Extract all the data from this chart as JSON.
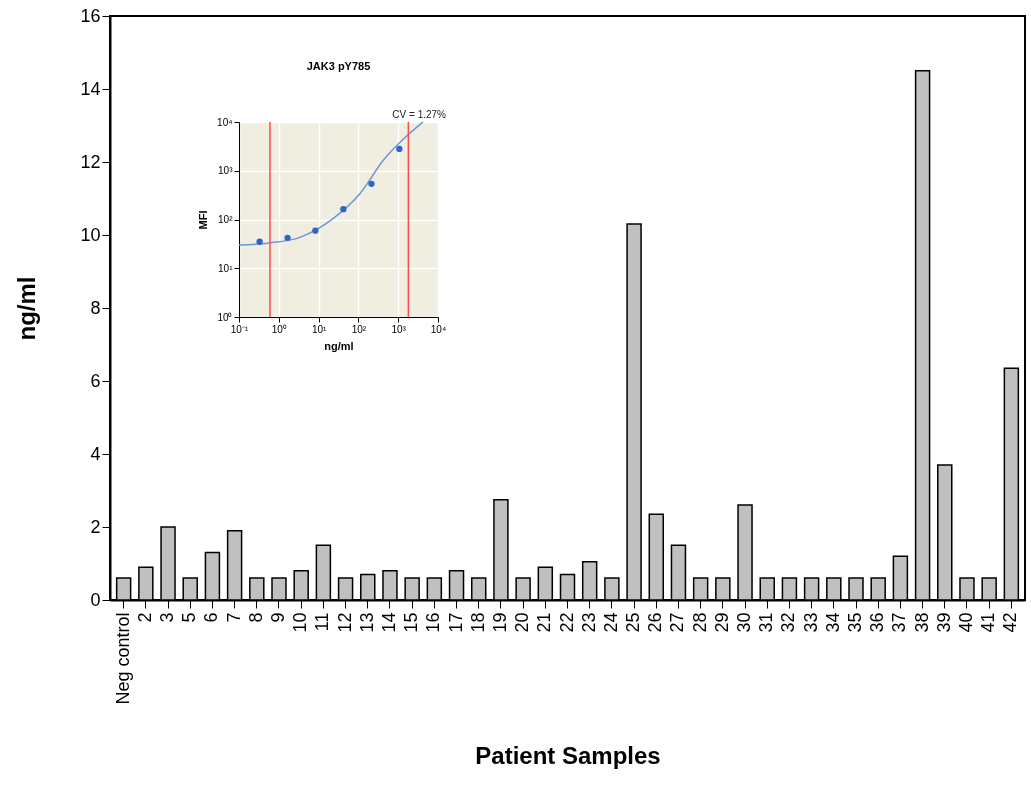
{
  "chart_data": [
    {
      "type": "bar",
      "xlabel": "Patient Samples",
      "ylabel": "ng/ml",
      "categories": [
        "Neg control",
        "2",
        "3",
        "5",
        "6",
        "7",
        "8",
        "9",
        "10",
        "11",
        "12",
        "13",
        "14",
        "15",
        "16",
        "17",
        "18",
        "19",
        "20",
        "21",
        "22",
        "23",
        "24",
        "25",
        "26",
        "27",
        "28",
        "29",
        "30",
        "31",
        "32",
        "33",
        "34",
        "35",
        "36",
        "37",
        "38",
        "39",
        "40",
        "41",
        "42"
      ],
      "values": [
        0.6,
        0.9,
        2.0,
        0.6,
        1.3,
        1.9,
        0.6,
        0.6,
        0.8,
        1.5,
        0.6,
        0.7,
        0.8,
        0.6,
        0.6,
        0.8,
        0.6,
        2.75,
        0.6,
        0.9,
        0.7,
        1.05,
        0.6,
        10.3,
        2.35,
        1.5,
        0.6,
        0.6,
        2.6,
        0.6,
        0.6,
        0.6,
        0.6,
        0.6,
        0.6,
        1.2,
        14.5,
        3.7,
        0.6,
        0.6,
        6.35
      ],
      "color": "#c0c0c0",
      "ylim": [
        0,
        16
      ],
      "yticks": [
        0,
        2,
        4,
        6,
        8,
        10,
        12,
        14,
        16
      ],
      "grid": false
    },
    {
      "type": "scatter",
      "title": "JAK3 pY785",
      "xlabel": "ng/ml",
      "ylabel": "MFI",
      "log": "xy",
      "grid": true,
      "xlim": [
        0.1,
        10000
      ],
      "ylim": [
        1,
        10000
      ],
      "xticks": [
        {
          "value": 0.1,
          "label": "10⁻¹"
        },
        {
          "value": 1,
          "label": "10⁰"
        },
        {
          "value": 10,
          "label": "10¹"
        },
        {
          "value": 100,
          "label": "10²"
        },
        {
          "value": 1000,
          "label": "10³"
        },
        {
          "value": 10000,
          "label": "10⁴"
        }
      ],
      "yticks": [
        {
          "value": 1,
          "label": "10⁰"
        },
        {
          "value": 10,
          "label": "10¹"
        },
        {
          "value": 100,
          "label": "10²"
        },
        {
          "value": 1000,
          "label": "10³"
        },
        {
          "value": 10000,
          "label": "10⁴"
        }
      ],
      "series": [
        {
          "type": "scatter",
          "marker": "circle",
          "color": "#2f63c8",
          "x": [
            0.33,
            1.66,
            8.3,
            42,
            213,
            1070
          ],
          "values": [
            35,
            42,
            59,
            163,
            540,
            2800
          ]
        },
        {
          "type": "line",
          "marker": "none",
          "color": "#6f95d8",
          "x": [
            0.1,
            0.59,
            3.4,
            23.5,
            110,
            427,
            1820,
            4170
          ],
          "values": [
            30,
            33,
            43,
            105,
            340,
            1660,
            5600,
            10000
          ]
        }
      ],
      "ref_lines": [
        {
          "axis": "x",
          "value": 0.6,
          "color": "#ff4a4a"
        },
        {
          "axis": "x",
          "value": 1800,
          "color": "#ff4a4a"
        }
      ],
      "annotations": [
        "CV = 1.27%"
      ]
    }
  ]
}
